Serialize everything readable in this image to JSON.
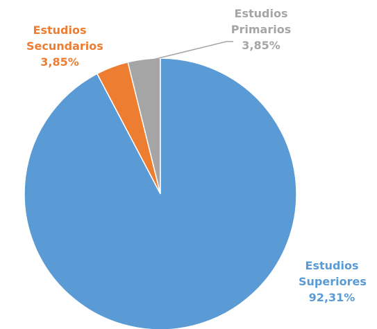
{
  "chart_data": {
    "type": "pie",
    "categories": [
      "Estudios Superiores",
      "Estudios Secundarios",
      "Estudios Primarios"
    ],
    "values": [
      92.31,
      3.85,
      3.85
    ],
    "value_labels": [
      "92,31%",
      "3,85%",
      "3,85%"
    ],
    "colors": [
      "#5b9bd5",
      "#ed7d31",
      "#a5a5a5"
    ]
  }
}
